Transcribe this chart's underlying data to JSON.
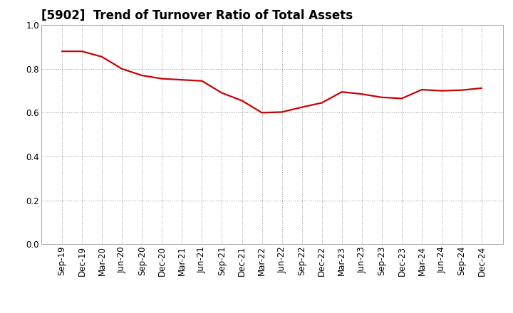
{
  "title": "[5902]  Trend of Turnover Ratio of Total Assets",
  "x_labels": [
    "Sep-19",
    "Dec-19",
    "Mar-20",
    "Jun-20",
    "Sep-20",
    "Dec-20",
    "Mar-21",
    "Jun-21",
    "Sep-21",
    "Dec-21",
    "Mar-22",
    "Jun-22",
    "Sep-22",
    "Dec-22",
    "Mar-23",
    "Jun-23",
    "Sep-23",
    "Dec-23",
    "Mar-24",
    "Jun-24",
    "Sep-24",
    "Dec-24"
  ],
  "y_values": [
    0.88,
    0.88,
    0.855,
    0.8,
    0.77,
    0.755,
    0.75,
    0.745,
    0.69,
    0.655,
    0.6,
    0.603,
    0.625,
    0.645,
    0.695,
    0.685,
    0.67,
    0.665,
    0.705,
    0.7,
    0.703,
    0.712
  ],
  "line_color": "#cc0000",
  "line_width": 1.6,
  "ylim": [
    0.0,
    1.0
  ],
  "yticks": [
    0.0,
    0.2,
    0.4,
    0.6,
    0.8,
    1.0
  ],
  "background_color": "#ffffff",
  "grid_color": "#999999",
  "title_fontsize": 12,
  "tick_fontsize": 8.5
}
